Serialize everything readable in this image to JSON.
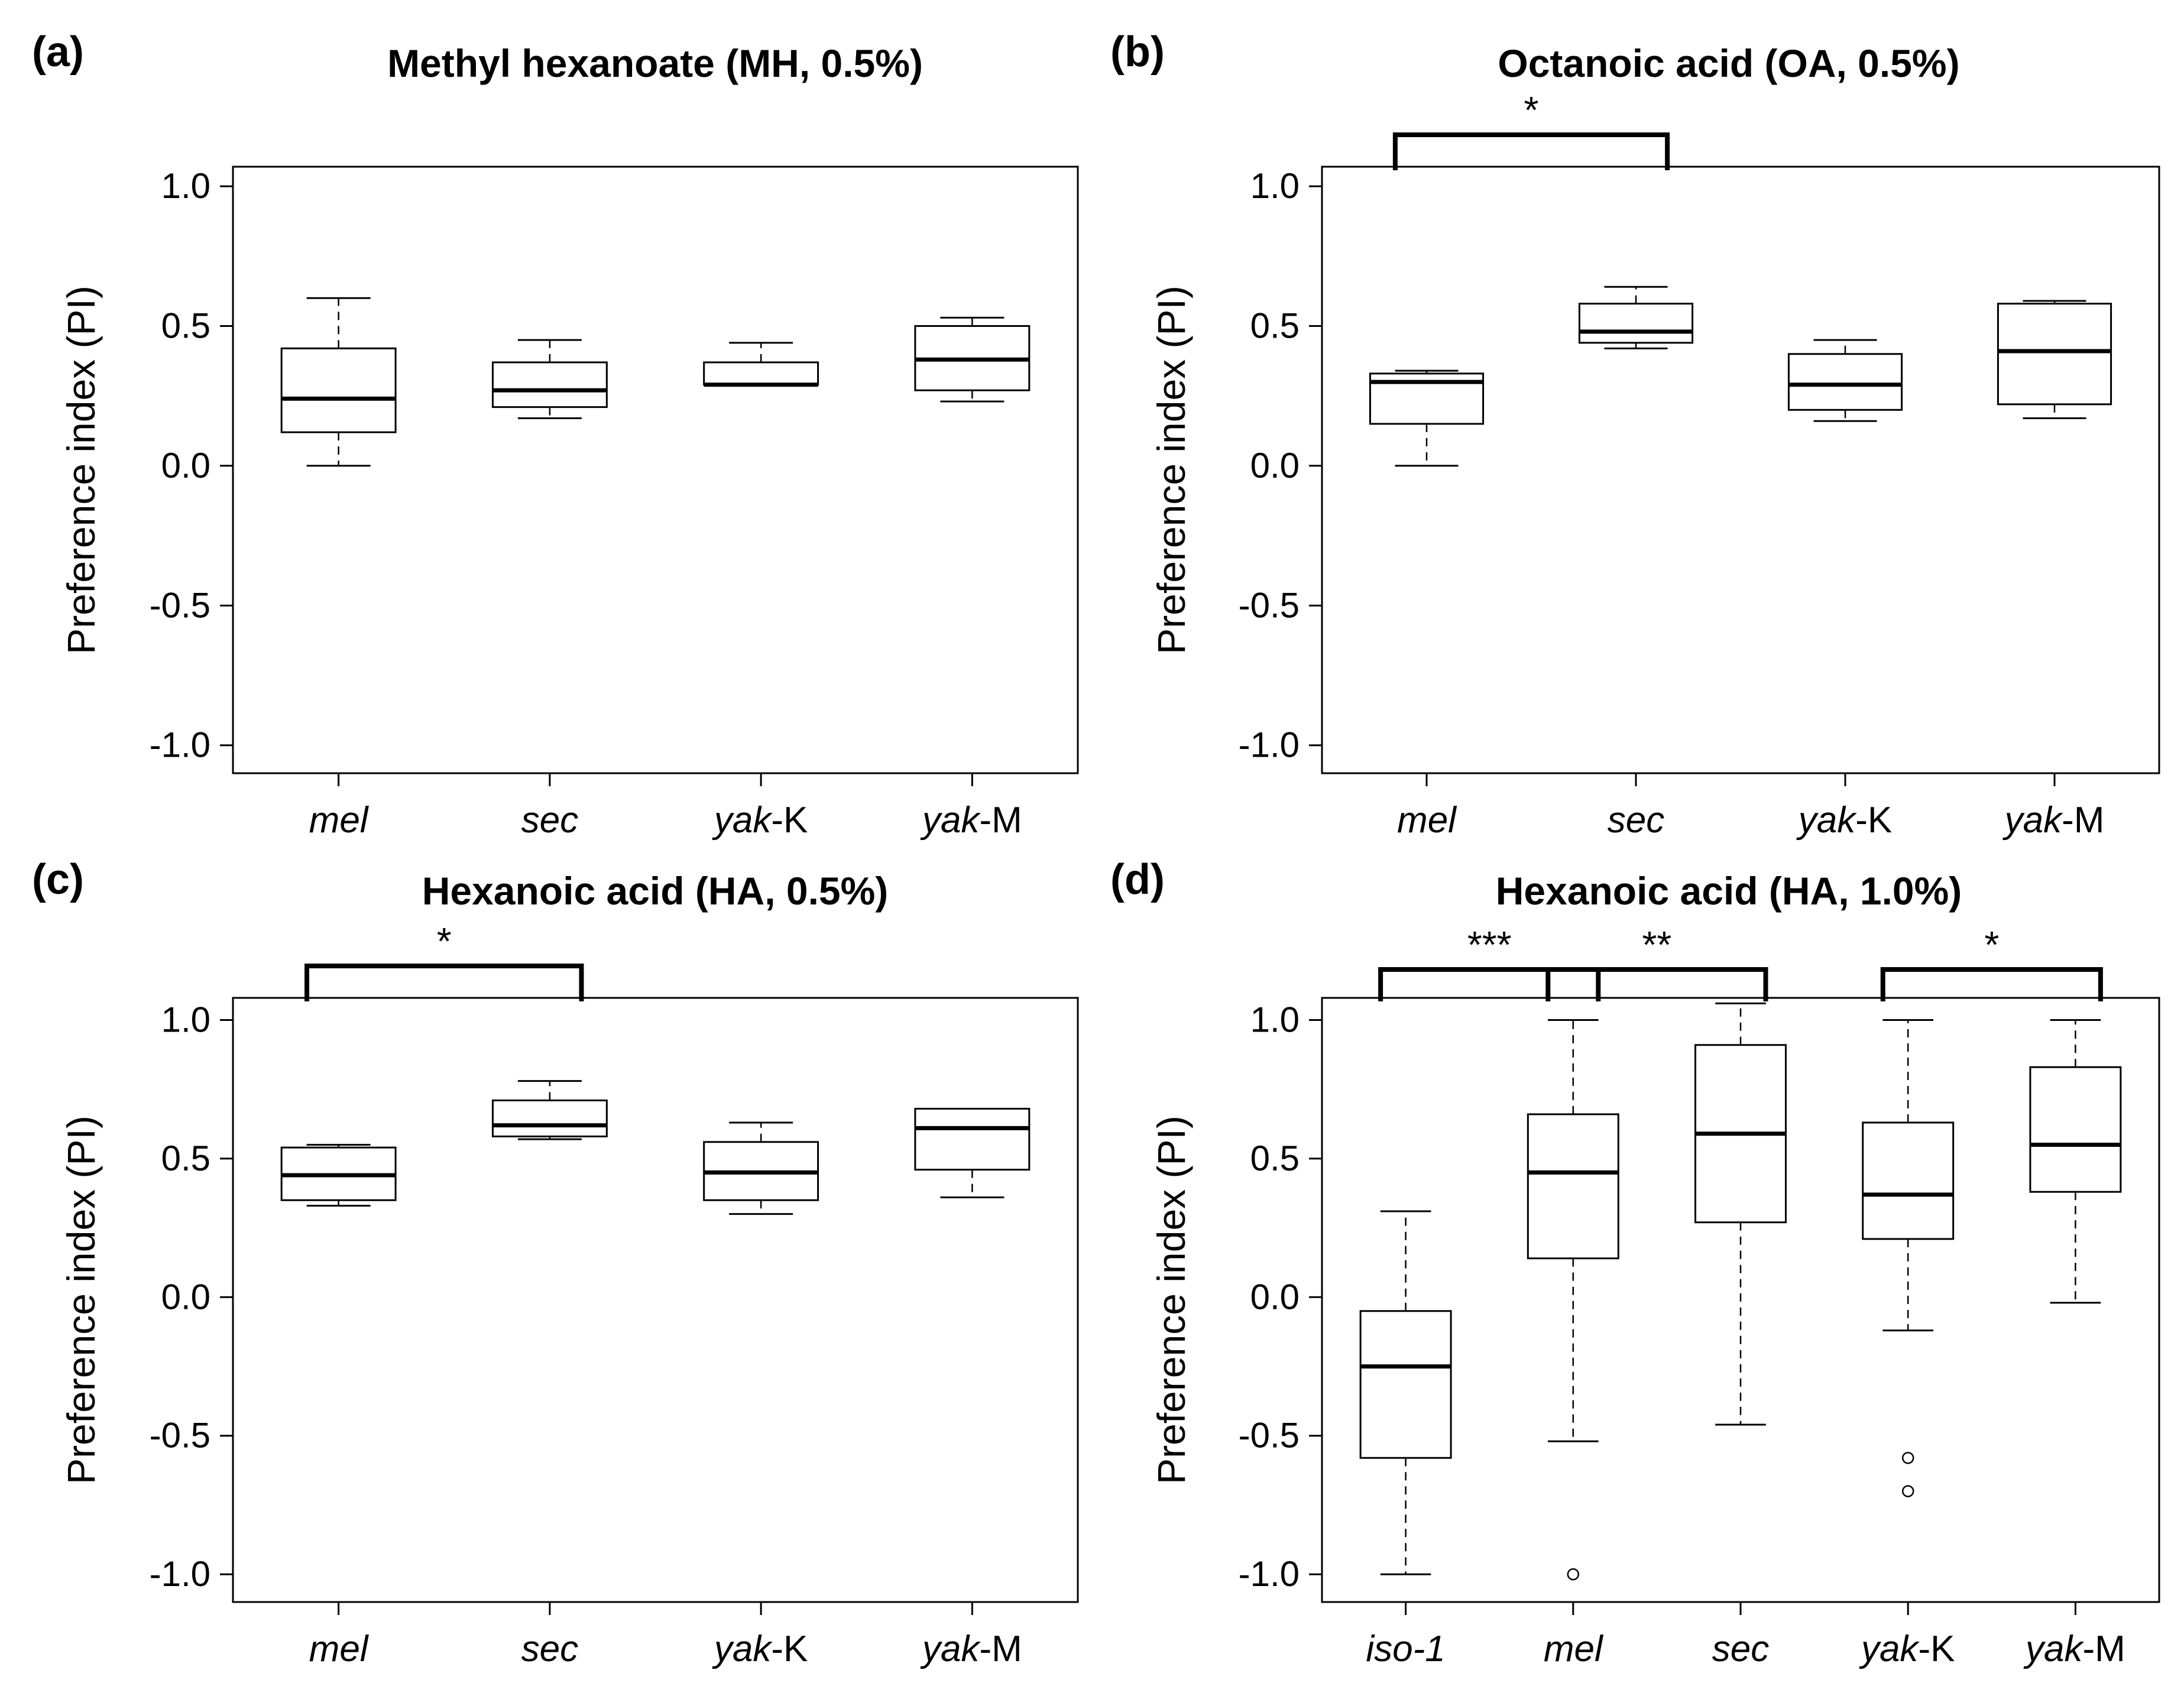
{
  "figure": {
    "panels": [
      {
        "letter": "(a)",
        "title": "Methyl hexanoate (MH, 0.5%)"
      },
      {
        "letter": "(b)",
        "title": "Octanoic acid (OA, 0.5%)"
      },
      {
        "letter": "(c)",
        "title": "Hexanoic acid (HA, 0.5%)"
      },
      {
        "letter": "(d)",
        "title": "Hexanoic acid (HA, 1.0%)"
      }
    ]
  },
  "chart_data": [
    {
      "type": "box",
      "letter": "(a)",
      "title": "Methyl hexanoate (MH, 0.5%)",
      "xlabel": "",
      "ylabel": "Preference index (PI)",
      "ylim": [
        -1.1,
        1.07
      ],
      "yticks": [
        1.0,
        0.5,
        0.0,
        -0.5,
        -1.0
      ],
      "ytick_labels": [
        "1.0",
        "0.5",
        "0.0",
        "-0.5",
        "-1.0"
      ],
      "categories": [
        {
          "italic": "mel",
          "suffix": ""
        },
        {
          "italic": "sec",
          "suffix": ""
        },
        {
          "italic": "yak",
          "suffix": "-K"
        },
        {
          "italic": "yak",
          "suffix": "-M"
        }
      ],
      "boxes": [
        {
          "whisker_low": 0.0,
          "q1": 0.12,
          "median": 0.24,
          "q3": 0.42,
          "whisker_high": 0.6,
          "outliers": []
        },
        {
          "whisker_low": 0.17,
          "q1": 0.21,
          "median": 0.27,
          "q3": 0.37,
          "whisker_high": 0.45,
          "outliers": []
        },
        {
          "whisker_low": 0.29,
          "q1": 0.29,
          "median": 0.29,
          "q3": 0.37,
          "whisker_high": 0.44,
          "outliers": []
        },
        {
          "whisker_low": 0.23,
          "q1": 0.27,
          "median": 0.38,
          "q3": 0.5,
          "whisker_high": 0.53,
          "outliers": []
        }
      ],
      "significance": []
    },
    {
      "type": "box",
      "letter": "(b)",
      "title": "Octanoic acid (OA, 0.5%)",
      "xlabel": "",
      "ylabel": "Preference index (PI)",
      "ylim": [
        -1.1,
        1.07
      ],
      "yticks": [
        1.0,
        0.5,
        0.0,
        -0.5,
        -1.0
      ],
      "ytick_labels": [
        "1.0",
        "0.5",
        "0.0",
        "-0.5",
        "-1.0"
      ],
      "categories": [
        {
          "italic": "mel",
          "suffix": ""
        },
        {
          "italic": "sec",
          "suffix": ""
        },
        {
          "italic": "yak",
          "suffix": "-K"
        },
        {
          "italic": "yak",
          "suffix": "-M"
        }
      ],
      "boxes": [
        {
          "whisker_low": 0.0,
          "q1": 0.15,
          "median": 0.3,
          "q3": 0.33,
          "whisker_high": 0.34,
          "outliers": []
        },
        {
          "whisker_low": 0.42,
          "q1": 0.44,
          "median": 0.48,
          "q3": 0.58,
          "whisker_high": 0.64,
          "outliers": []
        },
        {
          "whisker_low": 0.16,
          "q1": 0.2,
          "median": 0.29,
          "q3": 0.4,
          "whisker_high": 0.45,
          "outliers": []
        },
        {
          "whisker_low": 0.17,
          "q1": 0.22,
          "median": 0.41,
          "q3": 0.58,
          "whisker_high": 0.59,
          "outliers": []
        }
      ],
      "significance": [
        {
          "from": 0,
          "to": 1,
          "label": "*"
        }
      ]
    },
    {
      "type": "box",
      "letter": "(c)",
      "title": "Hexanoic acid (HA, 0.5%)",
      "xlabel": "",
      "ylabel": "Preference index (PI)",
      "ylim": [
        -1.1,
        1.08
      ],
      "yticks": [
        1.0,
        0.5,
        0.0,
        -0.5,
        -1.0
      ],
      "ytick_labels": [
        "1.0",
        "0.5",
        "0.0",
        "-0.5",
        "-1.0"
      ],
      "categories": [
        {
          "italic": "mel",
          "suffix": ""
        },
        {
          "italic": "sec",
          "suffix": ""
        },
        {
          "italic": "yak",
          "suffix": "-K"
        },
        {
          "italic": "yak",
          "suffix": "-M"
        }
      ],
      "boxes": [
        {
          "whisker_low": 0.33,
          "q1": 0.35,
          "median": 0.44,
          "q3": 0.54,
          "whisker_high": 0.55,
          "outliers": []
        },
        {
          "whisker_low": 0.57,
          "q1": 0.58,
          "median": 0.62,
          "q3": 0.71,
          "whisker_high": 0.78,
          "outliers": []
        },
        {
          "whisker_low": 0.3,
          "q1": 0.35,
          "median": 0.45,
          "q3": 0.56,
          "whisker_high": 0.63,
          "outliers": []
        },
        {
          "whisker_low": 0.36,
          "q1": 0.46,
          "median": 0.61,
          "q3": 0.68,
          "whisker_high": 0.68,
          "outliers": []
        }
      ],
      "significance": [
        {
          "from": 0,
          "to": 1,
          "label": "*"
        }
      ]
    },
    {
      "type": "box",
      "letter": "(d)",
      "title": "Hexanoic acid (HA, 1.0%)",
      "xlabel": "",
      "ylabel": "Preference index (PI)",
      "ylim": [
        -1.1,
        1.08
      ],
      "yticks": [
        1.0,
        0.5,
        0.0,
        -0.5,
        -1.0
      ],
      "ytick_labels": [
        "1.0",
        "0.5",
        "0.0",
        "-0.5",
        "-1.0"
      ],
      "categories": [
        {
          "italic": "iso-1",
          "suffix": ""
        },
        {
          "italic": "mel",
          "suffix": ""
        },
        {
          "italic": "sec",
          "suffix": ""
        },
        {
          "italic": "yak",
          "suffix": "-K"
        },
        {
          "italic": "yak",
          "suffix": "-M"
        }
      ],
      "boxes": [
        {
          "whisker_low": -1.0,
          "q1": -0.58,
          "median": -0.25,
          "q3": -0.05,
          "whisker_high": 0.31,
          "outliers": []
        },
        {
          "whisker_low": -0.52,
          "q1": 0.14,
          "median": 0.45,
          "q3": 0.66,
          "whisker_high": 1.0,
          "outliers": [
            -1.0
          ]
        },
        {
          "whisker_low": -0.46,
          "q1": 0.27,
          "median": 0.59,
          "q3": 0.91,
          "whisker_high": 1.06,
          "outliers": []
        },
        {
          "whisker_low": -0.12,
          "q1": 0.21,
          "median": 0.37,
          "q3": 0.63,
          "whisker_high": 1.0,
          "outliers": [
            -0.58,
            -0.7
          ]
        },
        {
          "whisker_low": -0.02,
          "q1": 0.38,
          "median": 0.55,
          "q3": 0.83,
          "whisker_high": 1.0,
          "outliers": []
        }
      ],
      "significance": [
        {
          "from": 0,
          "to": 1,
          "label": "***"
        },
        {
          "from": 1,
          "to": 2,
          "label": "**"
        },
        {
          "from": 3,
          "to": 4,
          "label": "*"
        }
      ]
    }
  ]
}
